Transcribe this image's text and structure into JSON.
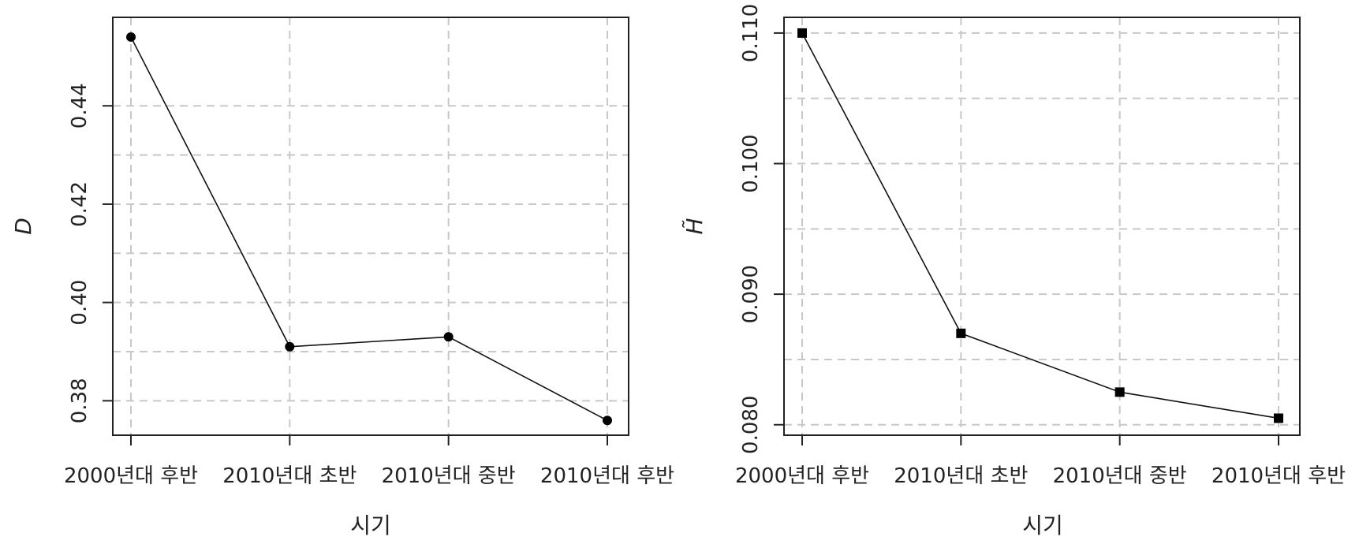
{
  "chart_data": [
    {
      "type": "line",
      "categories": [
        "2000년대 후반",
        "2010년대 초반",
        "2010년대 중반",
        "2010년대 후반"
      ],
      "values": [
        0.454,
        0.391,
        0.393,
        0.376
      ],
      "xlabel": "시기",
      "ylabel": "D",
      "ylim": [
        0.373,
        0.458
      ],
      "yticks": [
        0.38,
        0.4,
        0.42,
        0.44
      ],
      "ytick_labels": [
        "0.38",
        "0.40",
        "0.42",
        "0.44"
      ],
      "gridlines_y": [
        0.38,
        0.39,
        0.4,
        0.41,
        0.42,
        0.43,
        0.44
      ],
      "grid": true,
      "marker": "circle"
    },
    {
      "type": "line",
      "categories": [
        "2000년대 후반",
        "2010년대 초반",
        "2010년대 중반",
        "2010년대 후반"
      ],
      "values": [
        0.11,
        0.087,
        0.0825,
        0.0805
      ],
      "xlabel": "시기",
      "ylabel": "H̃",
      "ylim": [
        0.0792,
        0.1112
      ],
      "yticks": [
        0.08,
        0.09,
        0.1,
        0.11
      ],
      "ytick_labels": [
        "0.080",
        "0.090",
        "0.100",
        "0.110"
      ],
      "gridlines_y": [
        0.08,
        0.085,
        0.09,
        0.095,
        0.1,
        0.105,
        0.11
      ],
      "grid": true,
      "marker": "square"
    }
  ]
}
